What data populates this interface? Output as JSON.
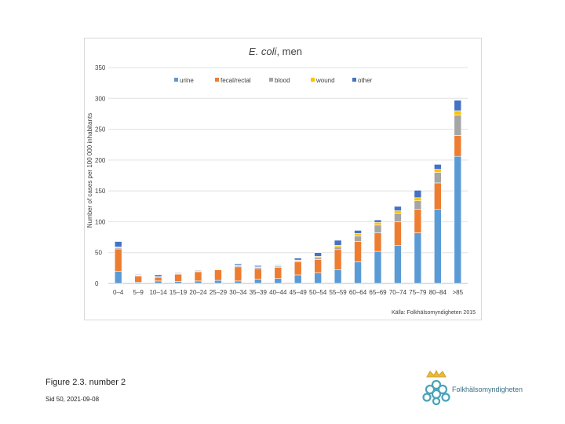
{
  "chart_data": {
    "type": "bar",
    "stacked": true,
    "title_main": "E. coli",
    "title_rest": ", men",
    "ylabel": "Number of cases per 100 000 inhabitants",
    "xlabel": "",
    "ylim": [
      0,
      350
    ],
    "yticks": [
      0,
      50,
      100,
      150,
      200,
      250,
      300,
      350
    ],
    "grid": true,
    "legend_position": "top",
    "source_note": "Källa: Folkhälsomyndigheten 2015",
    "categories": [
      "0–4",
      "5–9",
      "10–14",
      "15–19",
      "20–24",
      "25–29",
      "30–34",
      "35–39",
      "40–44",
      "45–49",
      "50–54",
      "55–59",
      "60–64",
      "65–69",
      "70–74",
      "75–79",
      "80–84",
      ">85"
    ],
    "series": [
      {
        "name": "urine",
        "color": "#5b9bd5",
        "values": [
          20,
          2,
          4,
          3,
          4,
          5,
          4,
          7,
          8,
          14,
          17,
          22,
          35,
          52,
          62,
          82,
          120,
          206
        ]
      },
      {
        "name": "fecal/rectal",
        "color": "#ed7d31",
        "values": [
          36,
          10,
          6,
          12,
          15,
          17,
          23,
          17,
          18,
          21,
          22,
          33,
          33,
          30,
          38,
          38,
          43,
          34
        ]
      },
      {
        "name": "blood",
        "color": "#a5a5a5",
        "values": [
          2,
          1,
          1,
          1,
          1,
          1,
          2,
          2,
          2,
          2,
          3,
          4,
          9,
          13,
          14,
          14,
          17,
          33
        ]
      },
      {
        "name": "wound",
        "color": "#ffc000",
        "values": [
          1,
          1,
          0,
          1,
          1,
          1,
          1,
          1,
          1,
          1,
          2,
          3,
          4,
          4,
          4,
          5,
          5,
          7
        ]
      },
      {
        "name": "other",
        "color": "#4472c4",
        "values": [
          9,
          1,
          3,
          1,
          1,
          0,
          2,
          2,
          1,
          3,
          6,
          8,
          5,
          4,
          7,
          12,
          8,
          17
        ]
      }
    ]
  },
  "caption": "Figure 2.3. number 2",
  "footer": "Sid 50, 2021-09-08",
  "logo_text": "Folkhälsomyndigheten"
}
